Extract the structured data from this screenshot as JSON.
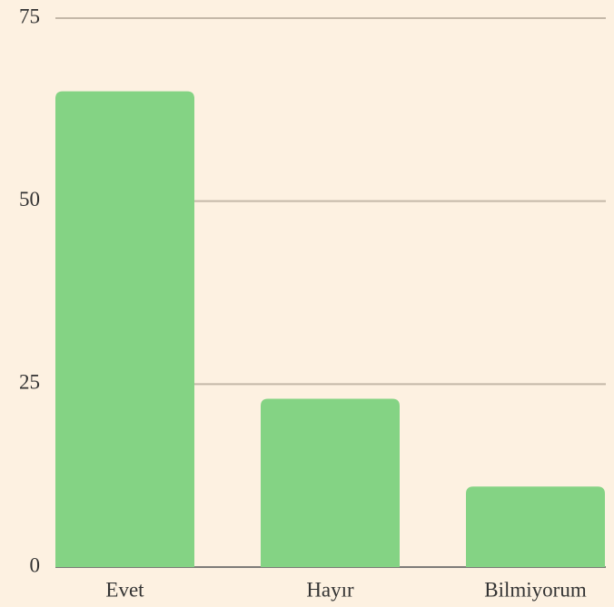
{
  "chart_data": {
    "type": "bar",
    "categories": [
      "Evet",
      "Hayır",
      "Bilmiyorum"
    ],
    "values": [
      65,
      23,
      11
    ],
    "color": "#84d384",
    "ylim": [
      0,
      75
    ],
    "yticks": [
      0,
      25,
      50,
      75
    ],
    "grid": true
  }
}
